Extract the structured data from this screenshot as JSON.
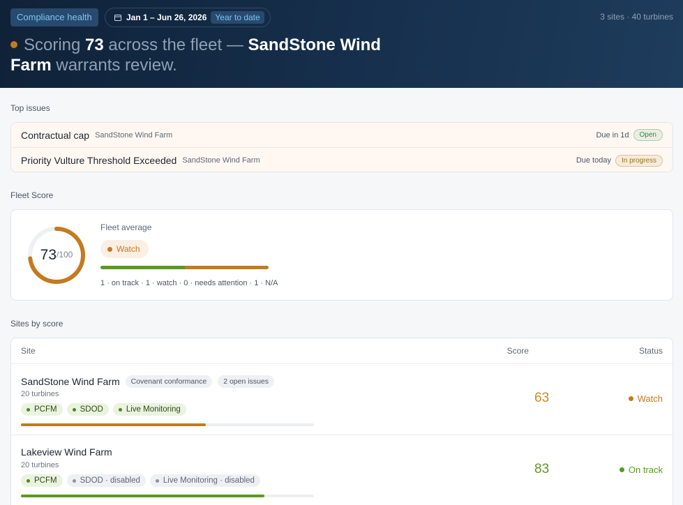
{
  "header": {
    "badge": "Compliance health",
    "date_range": "Jan 1 – Jun 26, 2026",
    "period": "Year to date",
    "summary": "3 sites · 40 turbines",
    "headline": {
      "pre": "Scoring",
      "score": 73,
      "mid": "across the fleet —",
      "site": "SandStone Wind Farm",
      "post": "warrants review."
    }
  },
  "top_issues": {
    "title": "Top issues",
    "items": [
      {
        "name": "Contractual cap",
        "site": "SandStone Wind Farm",
        "due": "Due in 1d",
        "status": "Open",
        "color": "#2e8b4a"
      },
      {
        "name": "Priority Vulture Threshold Exceeded",
        "site": "SandStone Wind Farm",
        "due": "Due today",
        "status": "In progress",
        "color": "#9a7410"
      }
    ]
  },
  "fleet_score": {
    "title": "Fleet Score",
    "score": 73,
    "max": 100,
    "max_label": "/100",
    "label": "Fleet average",
    "status": "Watch",
    "color": "#c47a1e",
    "breakdown": [
      {
        "count": 1,
        "label": "on track",
        "color": "#5a9a1e"
      },
      {
        "count": 1,
        "label": "watch",
        "color": "#c47a1e"
      },
      {
        "count": 0,
        "label": "needs attention",
        "color": "#c0392b"
      },
      {
        "count": 1,
        "label": "N/A"
      }
    ]
  },
  "sites": {
    "title": "Sites by score",
    "columns": [
      "Site",
      "Score",
      "Status"
    ],
    "max": 100,
    "rows": [
      {
        "name": "SandStone Wind Farm",
        "tags": [
          "Covenant conformance",
          "2 open issues"
        ],
        "turbines": "20 turbines",
        "chips": [
          {
            "label": "PCFM",
            "enabled": true
          },
          {
            "label": "SDOD",
            "enabled": true
          },
          {
            "label": "Live Monitoring",
            "enabled": true
          }
        ],
        "score": 63,
        "status": "Watch",
        "color": "#c47a1e",
        "score_color": "#d4891c"
      },
      {
        "name": "Lakeview Wind Farm",
        "tags": [],
        "turbines": "20 turbines",
        "chips": [
          {
            "label": "PCFM",
            "enabled": true
          },
          {
            "label": "SDOD · disabled",
            "enabled": false
          },
          {
            "label": "Live Monitoring · disabled",
            "enabled": false
          }
        ],
        "score": 83,
        "status": "On track",
        "color": "#5a9a1e",
        "score_color": "#5a9a1e"
      }
    ]
  }
}
